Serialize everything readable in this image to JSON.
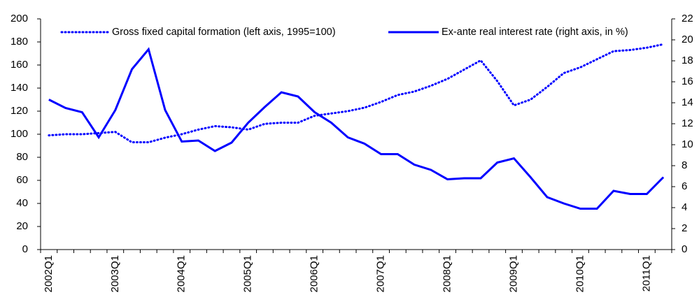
{
  "chart_data": {
    "type": "line",
    "categories": [
      "2002Q1",
      null,
      null,
      null,
      "2003Q1",
      null,
      null,
      null,
      "2004Q1",
      null,
      null,
      null,
      "2005Q1",
      null,
      null,
      null,
      "2006Q1",
      null,
      null,
      null,
      "2007Q1",
      null,
      null,
      null,
      "2008Q1",
      null,
      null,
      null,
      "2009Q1",
      null,
      null,
      null,
      "2010Q1",
      null,
      null,
      null,
      "2011Q1",
      null
    ],
    "series": [
      {
        "name": "Gross fixed capital formation (left axis, 1995=100)",
        "color": "#0000ff",
        "style": "dotted",
        "axis": "y",
        "values": [
          99,
          100,
          100,
          101,
          102,
          93,
          93,
          97,
          100,
          104,
          107,
          106,
          104,
          109,
          110,
          110,
          116,
          118,
          120,
          123,
          128,
          134,
          137,
          142,
          148,
          156,
          164,
          146,
          125,
          130,
          141,
          153,
          158,
          165,
          172,
          173,
          175,
          178
        ]
      },
      {
        "name": "Ex-ante real interest rate (right axis, in %)",
        "color": "#0000ff",
        "style": "solid",
        "axis": "y2",
        "values": [
          14.3,
          13.5,
          13.1,
          10.7,
          13.3,
          17.2,
          19.1,
          13.3,
          10.3,
          10.4,
          9.4,
          10.2,
          12.1,
          13.6,
          15.0,
          14.6,
          13.1,
          12.1,
          10.7,
          10.1,
          9.1,
          9.1,
          8.1,
          7.6,
          6.7,
          6.8,
          6.8,
          8.3,
          8.7,
          6.9,
          5.0,
          4.4,
          3.9,
          3.9,
          5.6,
          5.3,
          5.3,
          6.9
        ]
      }
    ],
    "ylim": [
      0,
      200
    ],
    "yticks": [
      0,
      20,
      40,
      60,
      80,
      100,
      120,
      140,
      160,
      180,
      200
    ],
    "y2lim": [
      0,
      22
    ],
    "y2ticks": [
      0,
      2,
      4,
      6,
      8,
      10,
      12,
      14,
      16,
      18,
      20,
      22
    ],
    "legend": "top"
  }
}
